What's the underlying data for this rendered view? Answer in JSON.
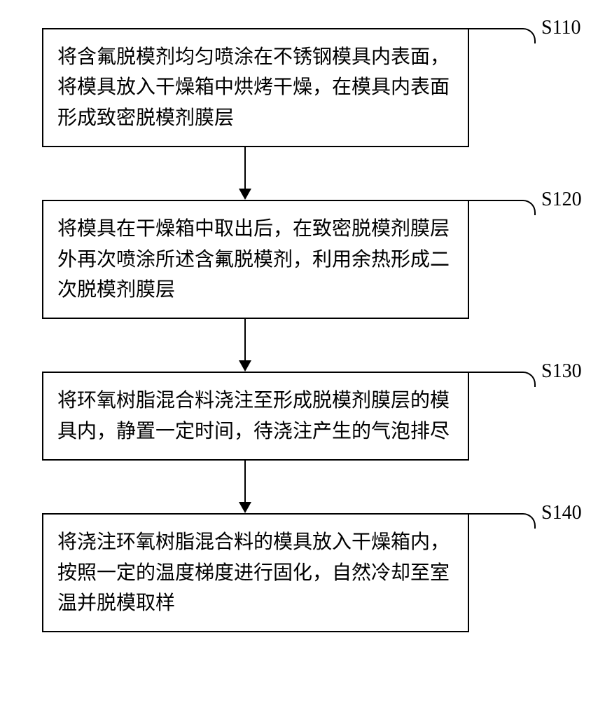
{
  "flowchart": {
    "type": "flowchart",
    "background_color": "#ffffff",
    "border_color": "#000000",
    "text_color": "#000000",
    "font_size": 28,
    "box_border_width": 2,
    "arrow_color": "#000000",
    "steps": [
      {
        "id": "S110",
        "text": "将含氟脱模剂均匀喷涂在不锈钢模具内表面，将模具放入干燥箱中烘烤干燥，在模具内表面形成致密脱模剂膜层"
      },
      {
        "id": "S120",
        "text": "将模具在干燥箱中取出后，在致密脱模剂膜层外再次喷涂所述含氟脱模剂，利用余热形成二次脱模剂膜层"
      },
      {
        "id": "S130",
        "text": "将环氧树脂混合料浇注至形成脱模剂膜层的模具内，静置一定时间，待浇注产生的气泡排尽"
      },
      {
        "id": "S140",
        "text": "将浇注环氧树脂混合料的模具放入干燥箱内，按照一定的温度梯度进行固化，自然冷却至室温并脱模取样"
      }
    ]
  }
}
